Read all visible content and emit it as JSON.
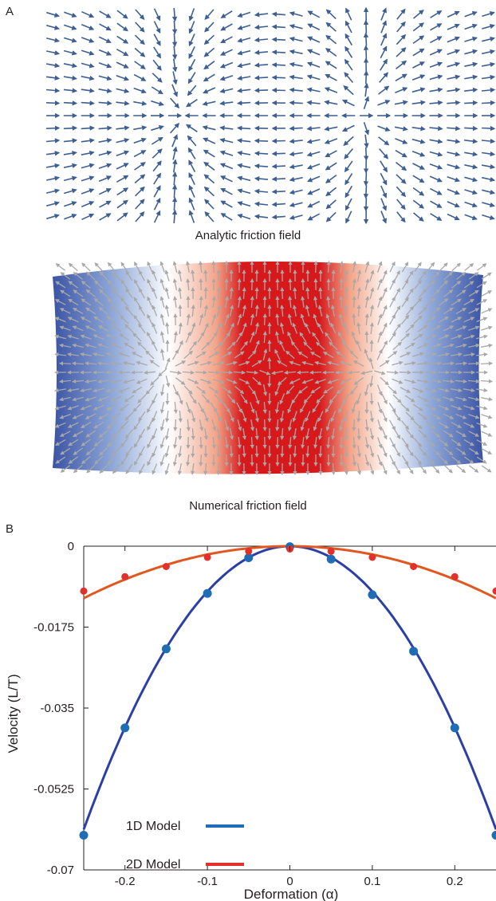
{
  "panel_a": {
    "letter": "A",
    "analytic_caption": "Analytic friction field",
    "numerical_caption": "Numerical friction field",
    "colors": {
      "analytic_arrow": "#3d5f92",
      "numerical_arrow": "#a8a8a8",
      "heat_blue": "#3a53a4",
      "heat_white": "#ffffff",
      "heat_red": "#d7191c"
    }
  },
  "panel_b": {
    "letter": "B"
  },
  "chart_data": {
    "type": "scatter",
    "title": "",
    "xlabel": "Deformation (α)",
    "ylabel": "Velocity (L/T)",
    "xlim": [
      -0.25,
      0.25
    ],
    "ylim": [
      -0.07,
      0
    ],
    "xticks": [
      -0.2,
      -0.1,
      0,
      0.1,
      0.2
    ],
    "xtick_labels": [
      "-0.2",
      "-0.1",
      "0",
      "0.1",
      "0.2"
    ],
    "yticks": [
      0,
      -0.0175,
      -0.035,
      -0.0525,
      -0.07
    ],
    "ytick_labels": [
      "0",
      "-0.0175",
      "-0.035",
      "-0.0525",
      "-0.07"
    ],
    "grid": false,
    "legend_position": "bottom-left",
    "series": [
      {
        "name": "1D Model",
        "color": "#1f6db5",
        "line_color": "#2b3fa6",
        "x": [
          -0.25,
          -0.2,
          -0.15,
          -0.1,
          -0.05,
          0,
          0.05,
          0.1,
          0.15,
          0.2,
          0.25
        ],
        "y": [
          -0.0625,
          -0.0393,
          -0.0222,
          -0.0102,
          -0.0025,
          -0.0001,
          -0.0028,
          -0.0105,
          -0.0227,
          -0.0393,
          -0.0625
        ],
        "curve_coefficient": -0.98
      },
      {
        "name": "2D Model",
        "color": "#e0312b",
        "line_color": "#e0571f",
        "x": [
          -0.25,
          -0.2,
          -0.15,
          -0.1,
          -0.05,
          0,
          0.05,
          0.1,
          0.15,
          0.2,
          0.25
        ],
        "y": [
          -0.0097,
          -0.0066,
          -0.0044,
          -0.0024,
          -0.0011,
          -0.0006,
          -0.0011,
          -0.0024,
          -0.0044,
          -0.0066,
          -0.0097
        ],
        "curve_coefficient": -0.18
      }
    ]
  }
}
